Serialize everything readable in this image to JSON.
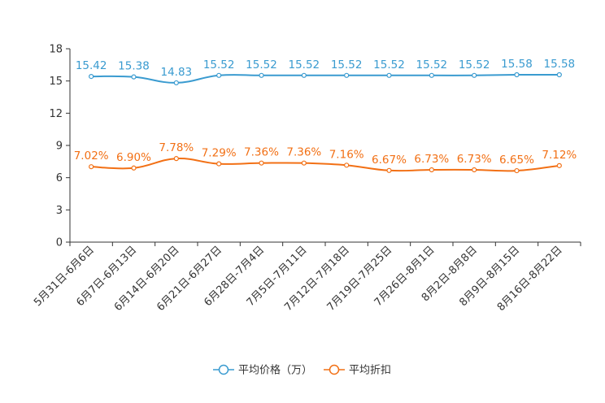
{
  "chart_data": {
    "type": "line",
    "categories": [
      "5月31日-6月6日",
      "6月7日-6月13日",
      "6月14日-6月20日",
      "6月21日-6月27日",
      "6月28日-7月4日",
      "7月5日-7月11日",
      "7月12日-7月18日",
      "7月19日-7月25日",
      "7月26日-8月1日",
      "8月2日-8月8日",
      "8月9日-8月15日",
      "8月16日-8月22日"
    ],
    "ylim": [
      0,
      18
    ],
    "yticks": [
      0,
      3,
      6,
      9,
      12,
      15,
      18
    ],
    "series": [
      {
        "name": "平均价格（万）",
        "color": "#3a9bd0",
        "values": [
          15.42,
          15.38,
          14.83,
          15.52,
          15.52,
          15.52,
          15.52,
          15.52,
          15.52,
          15.52,
          15.58,
          15.58
        ],
        "labels": [
          "15.42",
          "15.38",
          "14.83",
          "15.52",
          "15.52",
          "15.52",
          "15.52",
          "15.52",
          "15.52",
          "15.52",
          "15.58",
          "15.58"
        ]
      },
      {
        "name": "平均折扣",
        "color": "#f27015",
        "values": [
          7.02,
          6.9,
          7.78,
          7.29,
          7.36,
          7.36,
          7.16,
          6.67,
          6.73,
          6.73,
          6.65,
          7.12
        ],
        "labels": [
          "7.02%",
          "6.90%",
          "7.78%",
          "7.29%",
          "7.36%",
          "7.36%",
          "7.16%",
          "6.67%",
          "6.73%",
          "6.73%",
          "6.65%",
          "7.12%"
        ]
      }
    ],
    "legend_position": "bottom-center"
  }
}
